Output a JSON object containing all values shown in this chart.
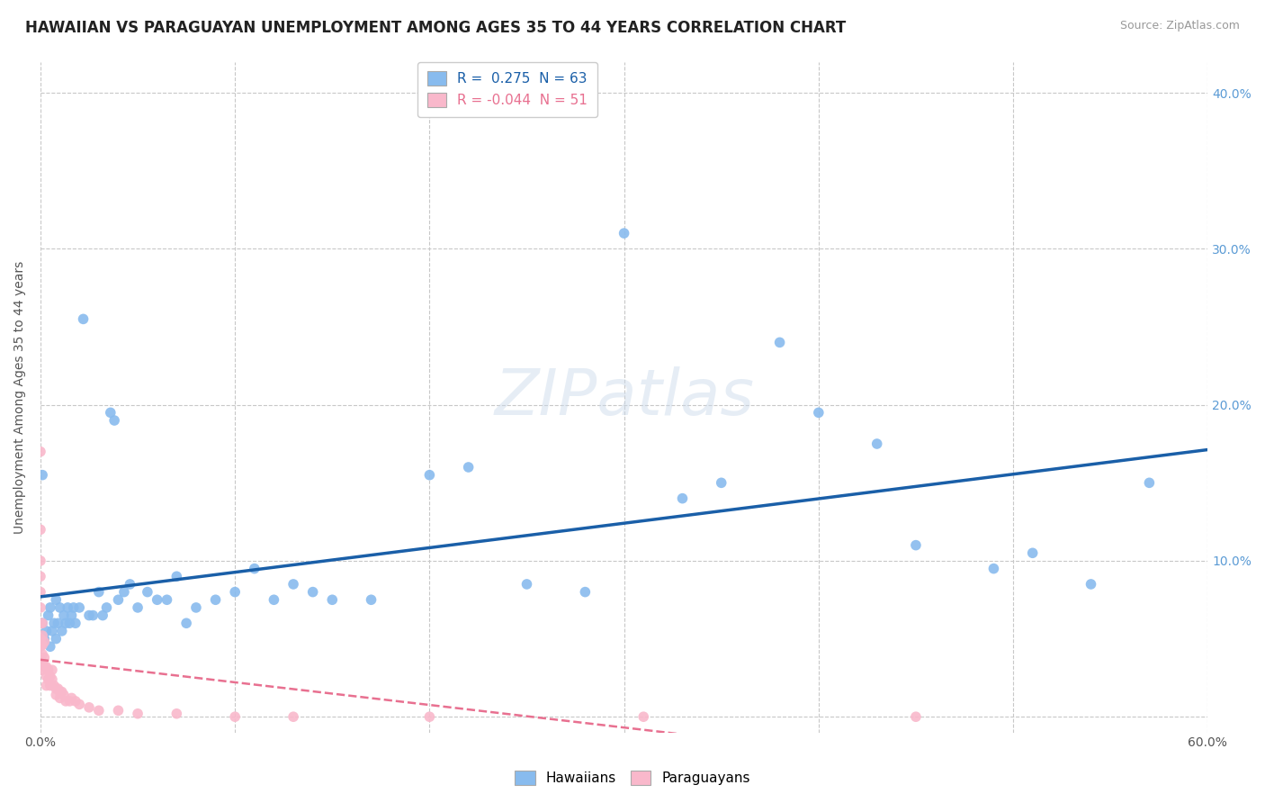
{
  "title": "HAWAIIAN VS PARAGUAYAN UNEMPLOYMENT AMONG AGES 35 TO 44 YEARS CORRELATION CHART",
  "source": "Source: ZipAtlas.com",
  "ylabel": "Unemployment Among Ages 35 to 44 years",
  "xlim": [
    0.0,
    0.6
  ],
  "ylim": [
    -0.01,
    0.42
  ],
  "xticks": [
    0.0,
    0.1,
    0.2,
    0.3,
    0.4,
    0.5,
    0.6
  ],
  "yticks": [
    0.0,
    0.1,
    0.2,
    0.3,
    0.4
  ],
  "background_color": "#ffffff",
  "grid_color": "#c8c8c8",
  "hawaiian_R": 0.275,
  "hawaiian_N": 63,
  "paraguayan_R": -0.044,
  "paraguayan_N": 51,
  "hawaiian_color": "#88bbee",
  "paraguayan_color": "#f9b8cb",
  "hawaiian_line_color": "#1a5fa8",
  "paraguayan_line_color": "#e87090",
  "hawaiian_x": [
    0.001,
    0.001,
    0.002,
    0.003,
    0.004,
    0.005,
    0.005,
    0.006,
    0.007,
    0.008,
    0.008,
    0.009,
    0.01,
    0.011,
    0.012,
    0.013,
    0.014,
    0.015,
    0.016,
    0.017,
    0.018,
    0.02,
    0.022,
    0.025,
    0.027,
    0.03,
    0.032,
    0.034,
    0.036,
    0.038,
    0.04,
    0.043,
    0.046,
    0.05,
    0.055,
    0.06,
    0.065,
    0.07,
    0.075,
    0.08,
    0.09,
    0.1,
    0.11,
    0.12,
    0.13,
    0.14,
    0.15,
    0.17,
    0.2,
    0.22,
    0.25,
    0.28,
    0.3,
    0.33,
    0.35,
    0.38,
    0.4,
    0.43,
    0.45,
    0.49,
    0.51,
    0.54,
    0.57
  ],
  "hawaiian_y": [
    0.155,
    0.06,
    0.05,
    0.055,
    0.065,
    0.045,
    0.07,
    0.055,
    0.06,
    0.05,
    0.075,
    0.06,
    0.07,
    0.055,
    0.065,
    0.06,
    0.07,
    0.06,
    0.065,
    0.07,
    0.06,
    0.07,
    0.255,
    0.065,
    0.065,
    0.08,
    0.065,
    0.07,
    0.195,
    0.19,
    0.075,
    0.08,
    0.085,
    0.07,
    0.08,
    0.075,
    0.075,
    0.09,
    0.06,
    0.07,
    0.075,
    0.08,
    0.095,
    0.075,
    0.085,
    0.08,
    0.075,
    0.075,
    0.155,
    0.16,
    0.085,
    0.08,
    0.31,
    0.14,
    0.15,
    0.24,
    0.195,
    0.175,
    0.11,
    0.095,
    0.105,
    0.085,
    0.15
  ],
  "paraguayan_x": [
    0.0,
    0.0,
    0.0,
    0.0,
    0.0,
    0.0,
    0.0,
    0.0,
    0.0,
    0.0,
    0.001,
    0.001,
    0.001,
    0.001,
    0.001,
    0.001,
    0.002,
    0.002,
    0.002,
    0.003,
    0.003,
    0.003,
    0.004,
    0.004,
    0.005,
    0.005,
    0.006,
    0.006,
    0.007,
    0.008,
    0.008,
    0.009,
    0.01,
    0.01,
    0.011,
    0.012,
    0.013,
    0.015,
    0.016,
    0.018,
    0.02,
    0.025,
    0.03,
    0.04,
    0.05,
    0.07,
    0.1,
    0.13,
    0.2,
    0.31,
    0.45
  ],
  "paraguayan_y": [
    0.17,
    0.12,
    0.1,
    0.09,
    0.08,
    0.07,
    0.06,
    0.05,
    0.045,
    0.038,
    0.06,
    0.052,
    0.046,
    0.04,
    0.035,
    0.03,
    0.048,
    0.038,
    0.032,
    0.032,
    0.026,
    0.02,
    0.03,
    0.024,
    0.026,
    0.02,
    0.03,
    0.024,
    0.02,
    0.018,
    0.014,
    0.018,
    0.016,
    0.012,
    0.016,
    0.014,
    0.01,
    0.01,
    0.012,
    0.01,
    0.008,
    0.006,
    0.004,
    0.004,
    0.002,
    0.002,
    0.0,
    0.0,
    0.0,
    0.0,
    0.0
  ]
}
